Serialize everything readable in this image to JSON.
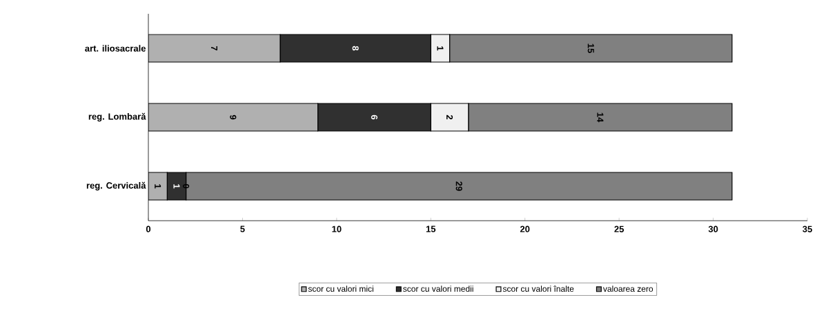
{
  "chart_data": {
    "type": "bar",
    "orientation": "horizontal",
    "stacked": true,
    "data_labels": true,
    "legend": "bottom",
    "grid": false,
    "categories": [
      "art. iliosacrale",
      "reg. Lombară",
      "reg. Cervicală"
    ],
    "annotations": [
      {
        "text": "0",
        "x": 2,
        "y": "reg. Cervicală"
      }
    ],
    "xlim": [
      0,
      35
    ],
    "xticks": [
      0,
      5,
      10,
      15,
      20,
      25,
      30,
      35
    ],
    "series": [
      {
        "name": "scor cu valori mici",
        "color": "#b0b0b0",
        "values": [
          7,
          9,
          1
        ]
      },
      {
        "name": "scor cu valori medii",
        "color": "#303030",
        "values": [
          8,
          6,
          1
        ]
      },
      {
        "name": "scor cu valori înalte",
        "color": "#f0f0f0",
        "values": [
          1,
          2,
          null
        ]
      },
      {
        "name": "valoarea zero",
        "color": "#808080",
        "values": [
          15,
          14,
          29
        ]
      }
    ]
  }
}
